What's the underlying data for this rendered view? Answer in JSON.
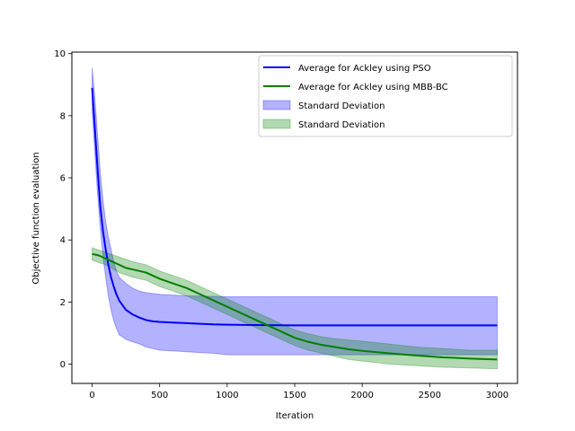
{
  "chart_data": {
    "type": "line",
    "title": "",
    "xlabel": "Iteration",
    "ylabel": "Objective function evaluation",
    "xlim": [
      -150,
      3150
    ],
    "ylim": [
      -0.62,
      10.05
    ],
    "xticks": [
      0,
      500,
      1000,
      1500,
      2000,
      2500,
      3000
    ],
    "yticks": [
      0,
      2,
      4,
      6,
      8,
      10
    ],
    "grid": false,
    "legend_position": "top-right",
    "colors": {
      "pso_line": "#0000ff",
      "pso_band": "#0000ff",
      "mbb_line": "#008000",
      "mbb_band": "#008000"
    },
    "series": [
      {
        "name": "Average for Ackley using PSO",
        "type": "line",
        "color": "#0000ff",
        "x": [
          0,
          20,
          40,
          60,
          80,
          100,
          120,
          140,
          160,
          180,
          200,
          250,
          300,
          350,
          400,
          450,
          500,
          600,
          700,
          800,
          900,
          1000,
          1200,
          1500,
          2000,
          2500,
          3000
        ],
        "y": [
          8.9,
          7.6,
          6.3,
          5.1,
          4.3,
          3.7,
          3.2,
          2.8,
          2.5,
          2.25,
          2.05,
          1.75,
          1.6,
          1.5,
          1.42,
          1.38,
          1.36,
          1.34,
          1.32,
          1.3,
          1.28,
          1.27,
          1.26,
          1.25,
          1.25,
          1.25,
          1.25
        ]
      },
      {
        "name": "Average for Ackley using MBB-BC",
        "type": "line",
        "color": "#008000",
        "x": [
          0,
          50,
          100,
          150,
          200,
          250,
          300,
          400,
          500,
          600,
          700,
          800,
          900,
          1000,
          1100,
          1200,
          1300,
          1400,
          1500,
          1600,
          1700,
          1800,
          1900,
          2000,
          2200,
          2400,
          2600,
          2800,
          3000
        ],
        "y": [
          3.55,
          3.5,
          3.4,
          3.3,
          3.2,
          3.1,
          3.05,
          2.95,
          2.75,
          2.6,
          2.45,
          2.25,
          2.05,
          1.85,
          1.65,
          1.45,
          1.25,
          1.05,
          0.85,
          0.72,
          0.62,
          0.55,
          0.48,
          0.43,
          0.35,
          0.28,
          0.22,
          0.18,
          0.15
        ]
      },
      {
        "name": "Standard Deviation",
        "type": "band",
        "color": "#0000ff",
        "x": [
          0,
          20,
          40,
          60,
          80,
          100,
          120,
          140,
          160,
          180,
          200,
          250,
          300,
          350,
          400,
          500,
          700,
          900,
          1000,
          1500,
          2000,
          2500,
          3000
        ],
        "lower": [
          8.2,
          6.8,
          5.5,
          4.4,
          3.5,
          2.8,
          2.2,
          1.75,
          1.4,
          1.15,
          0.95,
          0.8,
          0.72,
          0.65,
          0.55,
          0.45,
          0.4,
          0.35,
          0.3,
          0.3,
          0.3,
          0.3,
          0.3
        ],
        "upper": [
          9.55,
          8.6,
          7.4,
          6.2,
          5.3,
          4.6,
          4.1,
          3.7,
          3.3,
          3.0,
          2.8,
          2.6,
          2.45,
          2.35,
          2.3,
          2.25,
          2.2,
          2.18,
          2.17,
          2.17,
          2.17,
          2.17,
          2.17
        ]
      },
      {
        "name": "Standard Deviation",
        "type": "band",
        "color": "#008000",
        "x": [
          0,
          100,
          200,
          300,
          400,
          500,
          600,
          700,
          800,
          900,
          1000,
          1100,
          1200,
          1300,
          1400,
          1500,
          1600,
          1700,
          1800,
          1900,
          2000,
          2200,
          2400,
          2600,
          2800,
          3000
        ],
        "lower": [
          3.35,
          3.2,
          2.95,
          2.8,
          2.7,
          2.5,
          2.35,
          2.2,
          2.0,
          1.8,
          1.6,
          1.4,
          1.2,
          1.0,
          0.8,
          0.6,
          0.45,
          0.35,
          0.25,
          0.15,
          0.1,
          0.0,
          -0.05,
          -0.1,
          -0.12,
          -0.15
        ],
        "upper": [
          3.75,
          3.6,
          3.45,
          3.3,
          3.2,
          3.0,
          2.85,
          2.7,
          2.5,
          2.3,
          2.1,
          1.9,
          1.7,
          1.5,
          1.3,
          1.1,
          0.98,
          0.88,
          0.82,
          0.78,
          0.74,
          0.65,
          0.55,
          0.5,
          0.45,
          0.45
        ]
      }
    ]
  }
}
